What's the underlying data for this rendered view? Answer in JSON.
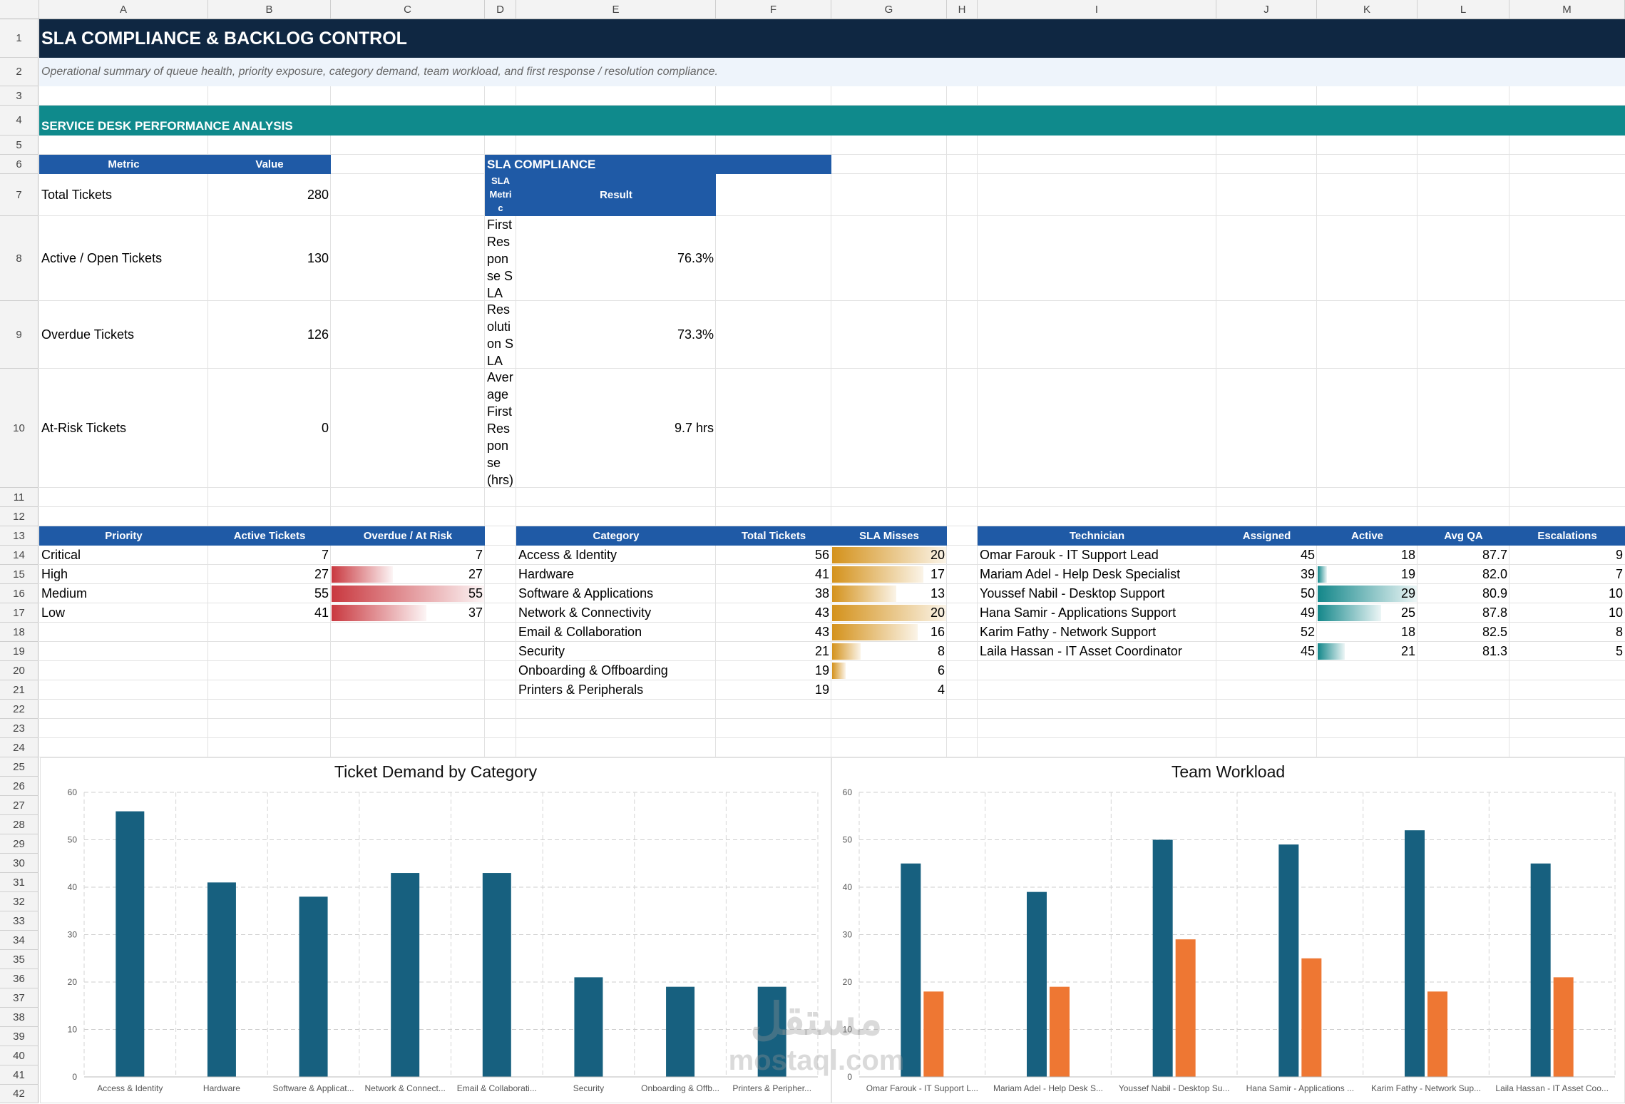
{
  "columns": [
    "A",
    "B",
    "C",
    "D",
    "E",
    "F",
    "G",
    "H",
    "I",
    "J",
    "K",
    "L",
    "M"
  ],
  "rows": [
    "1",
    "2",
    "3",
    "4",
    "5",
    "6",
    "7",
    "8",
    "9",
    "10",
    "11",
    "12",
    "13",
    "14",
    "15",
    "16",
    "17",
    "18",
    "19",
    "20",
    "21",
    "22",
    "23",
    "24",
    "25",
    "26",
    "27",
    "28",
    "29",
    "30",
    "31",
    "32",
    "33",
    "34",
    "35",
    "36",
    "37",
    "38",
    "39",
    "40",
    "41",
    "42"
  ],
  "title": "SLA COMPLIANCE & BACKLOG CONTROL",
  "subtitle": "Operational summary of queue health, priority exposure, category demand, team workload, and first response / resolution compliance.",
  "section": "SERVICE DESK PERFORMANCE ANALYSIS",
  "kpi": {
    "headers": [
      "Metric",
      "Value"
    ],
    "rows": [
      {
        "metric": "Total Tickets",
        "value": "280"
      },
      {
        "metric": "Active / Open Tickets",
        "value": "130"
      },
      {
        "metric": "Overdue Tickets",
        "value": "126"
      },
      {
        "metric": "At-Risk Tickets",
        "value": "0"
      }
    ]
  },
  "sla": {
    "title": "SLA COMPLIANCE",
    "headers": [
      "SLA Metric",
      "Result"
    ],
    "rows": [
      {
        "metric": "First Response SLA",
        "result": "76.3%"
      },
      {
        "metric": "Resolution SLA",
        "result": "73.3%"
      },
      {
        "metric": "Average First Response (hrs)",
        "result": "9.7 hrs"
      }
    ]
  },
  "priority": {
    "headers": [
      "Priority",
      "Active Tickets",
      "Overdue / At Risk"
    ],
    "rows": [
      {
        "name": "Critical",
        "active": "7",
        "overdue": "7",
        "bar": 0
      },
      {
        "name": "High",
        "active": "27",
        "overdue": "27",
        "bar": 0.4
      },
      {
        "name": "Medium",
        "active": "55",
        "overdue": "55",
        "bar": 1.0
      },
      {
        "name": "Low",
        "active": "41",
        "overdue": "37",
        "bar": 0.62
      }
    ]
  },
  "category": {
    "headers": [
      "Category",
      "Total Tickets",
      "SLA Misses"
    ],
    "rows": [
      {
        "name": "Access & Identity",
        "total": "56",
        "misses": "20",
        "bar": 1.0
      },
      {
        "name": "Hardware",
        "total": "41",
        "misses": "17",
        "bar": 0.8
      },
      {
        "name": "Software & Applications",
        "total": "38",
        "misses": "13",
        "bar": 0.56
      },
      {
        "name": "Network & Connectivity",
        "total": "43",
        "misses": "20",
        "bar": 1.0
      },
      {
        "name": "Email & Collaboration",
        "total": "43",
        "misses": "16",
        "bar": 0.75
      },
      {
        "name": "Security",
        "total": "21",
        "misses": "8",
        "bar": 0.25
      },
      {
        "name": "Onboarding & Offboarding",
        "total": "19",
        "misses": "6",
        "bar": 0.12
      },
      {
        "name": "Printers & Peripherals",
        "total": "19",
        "misses": "4",
        "bar": 0
      }
    ]
  },
  "technician": {
    "headers": [
      "Technician",
      "Assigned",
      "Active",
      "Avg QA",
      "Escalations"
    ],
    "rows": [
      {
        "name": "Omar Farouk - IT Support Lead",
        "assigned": "45",
        "active": "18",
        "qa": "87.7",
        "esc": "9",
        "bar": 0
      },
      {
        "name": "Mariam Adel - Help Desk Specialist",
        "assigned": "39",
        "active": "19",
        "qa": "82.0",
        "esc": "7",
        "bar": 0.09
      },
      {
        "name": "Youssef Nabil - Desktop Support",
        "assigned": "50",
        "active": "29",
        "qa": "80.9",
        "esc": "10",
        "bar": 1.0
      },
      {
        "name": "Hana Samir - Applications Support",
        "assigned": "49",
        "active": "25",
        "qa": "87.8",
        "esc": "10",
        "bar": 0.64
      },
      {
        "name": "Karim Fathy - Network Support",
        "assigned": "52",
        "active": "18",
        "qa": "82.5",
        "esc": "8",
        "bar": 0
      },
      {
        "name": "Laila Hassan - IT Asset Coordinator",
        "assigned": "45",
        "active": "21",
        "qa": "81.3",
        "esc": "5",
        "bar": 0.27
      }
    ]
  },
  "chart_data": [
    {
      "type": "bar",
      "title": "Ticket Demand by Category",
      "categories": [
        "Access & Identity",
        "Hardware",
        "Software & Applicat...",
        "Network & Connect...",
        "Email & Collaborati...",
        "Security",
        "Onboarding & Offb...",
        "Printers & Peripher..."
      ],
      "series": [
        {
          "values": [
            56,
            41,
            38,
            43,
            43,
            21,
            19,
            19
          ],
          "color": "#17607f"
        }
      ],
      "yticks": [
        "0",
        "10",
        "20",
        "30",
        "40",
        "50",
        "60"
      ],
      "ylim": [
        0,
        60
      ],
      "grid": true
    },
    {
      "type": "bar",
      "title": "Team Workload",
      "categories": [
        "Omar Farouk - IT Support L...",
        "Mariam Adel - Help Desk S...",
        "Youssef Nabil - Desktop Su...",
        "Hana Samir - Applications ...",
        "Karim Fathy - Network Sup...",
        "Laila Hassan - IT Asset Coo..."
      ],
      "series": [
        {
          "values": [
            45,
            39,
            50,
            49,
            52,
            45
          ],
          "color": "#17607f"
        },
        {
          "values": [
            18,
            19,
            29,
            25,
            18,
            21
          ],
          "color": "#ee7733"
        }
      ],
      "yticks": [
        "0",
        "10",
        "20",
        "30",
        "40",
        "50",
        "60"
      ],
      "ylim": [
        0,
        60
      ],
      "grid": true
    }
  ],
  "watermark": {
    "arabic": "مستقل",
    "latin": "mostaql.com"
  },
  "colors": {
    "title_bg": "#0f2742",
    "subtitle_bg": "#eef4fb",
    "section_bg": "#0f8a8c",
    "header_bg": "#1f5aa6",
    "priority_bar": "#c9383f",
    "category_bar": "#d4921c",
    "tech_bar": "#13878a"
  }
}
